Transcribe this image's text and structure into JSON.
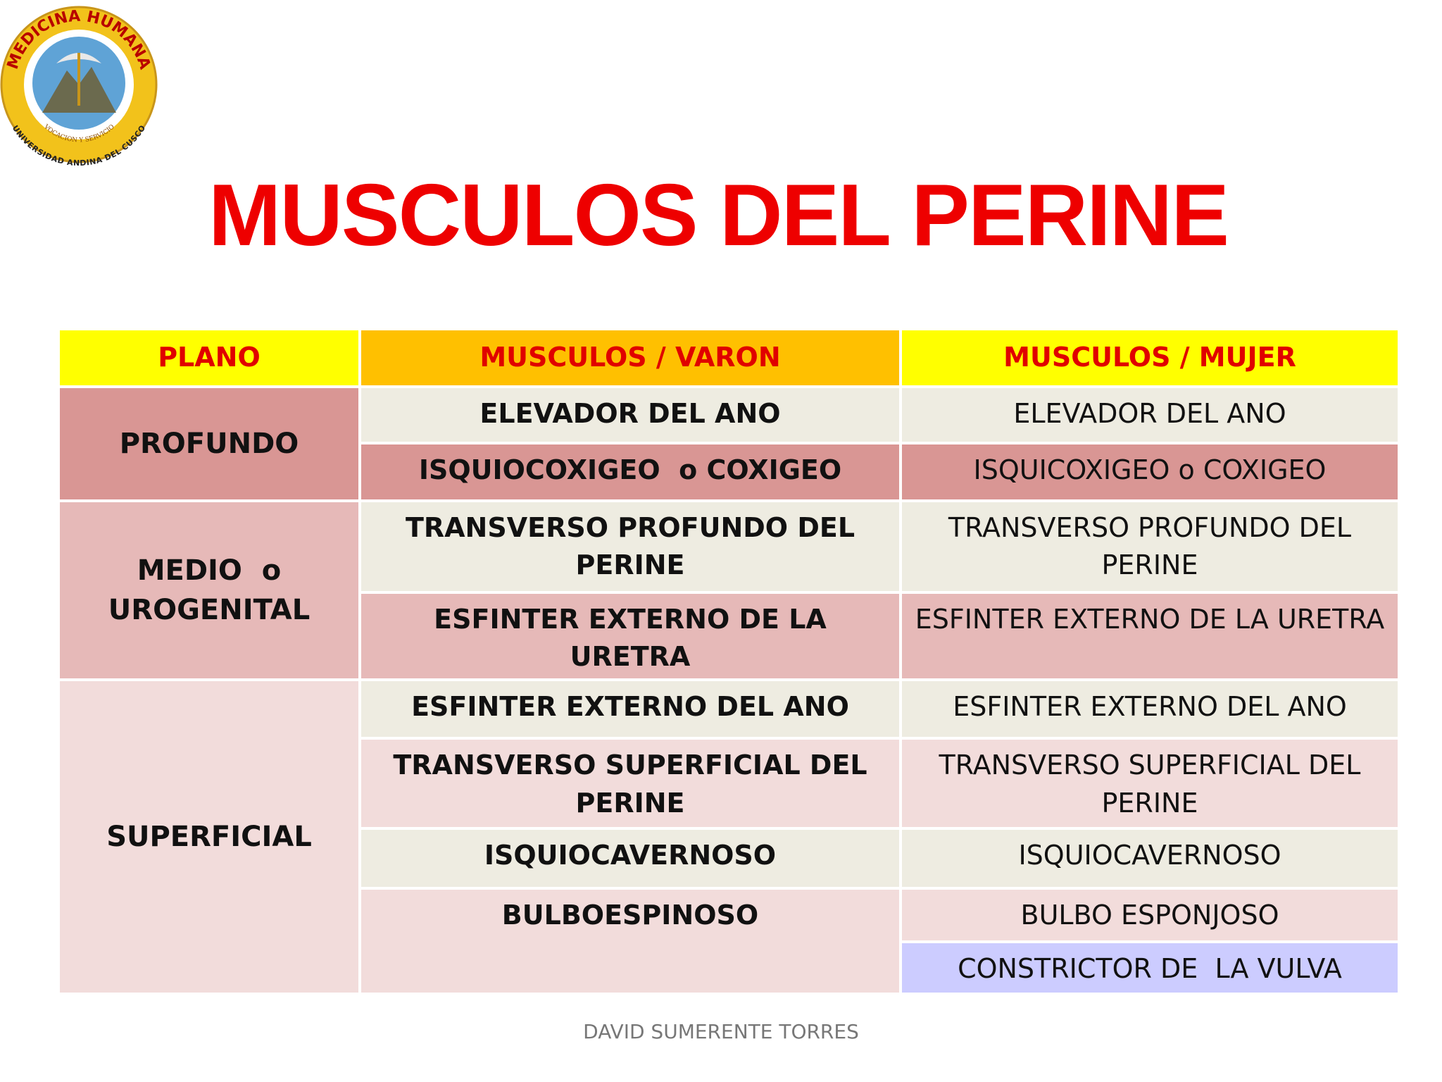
{
  "logo": {
    "top_text": "MEDICINA HUMANA",
    "bottom_text": "UNIVERSIDAD ANDINA DEL CUSCO",
    "motto": "VOCACION Y SERVICIO"
  },
  "title": "MUSCULOS DEL PERINE",
  "table": {
    "header": [
      "PLANO",
      "MUSCULOS / VARON",
      "MUSCULOS / MUJER"
    ],
    "groups": [
      {
        "plano": "PROFUNDO",
        "rows": [
          {
            "varon": "ELEVADOR DEL ANO",
            "mujer": "ELEVADOR DEL ANO"
          },
          {
            "varon": "ISQUIOCOXIGEO  o COXIGEO",
            "mujer": "ISQUICOXIGEO o COXIGEO"
          }
        ]
      },
      {
        "plano": "MEDIO  o UROGENITAL",
        "rows": [
          {
            "varon": "TRANSVERSO PROFUNDO DEL PERINE",
            "mujer": "TRANSVERSO PROFUNDO DEL PERINE"
          },
          {
            "varon": "ESFINTER EXTERNO DE LA URETRA",
            "mujer": "ESFINTER EXTERNO DE LA URETRA"
          }
        ]
      },
      {
        "plano": "SUPERFICIAL",
        "rows": [
          {
            "varon": "ESFINTER EXTERNO DEL ANO",
            "mujer": "ESFINTER EXTERNO DEL ANO"
          },
          {
            "varon": "TRANSVERSO SUPERFICIAL DEL PERINE",
            "mujer": "TRANSVERSO SUPERFICIAL DEL PERINE"
          },
          {
            "varon": "ISQUIOCAVERNOSO",
            "mujer": "ISQUIOCAVERNOSO"
          },
          {
            "varon": "BULBOESPINOSO",
            "mujer": "BULBO ESPONJOSO"
          },
          {
            "mujer": "CONSTRICTOR DE  LA VULVA"
          }
        ]
      }
    ]
  },
  "footer": "DAVID SUMERENTE TORRES"
}
